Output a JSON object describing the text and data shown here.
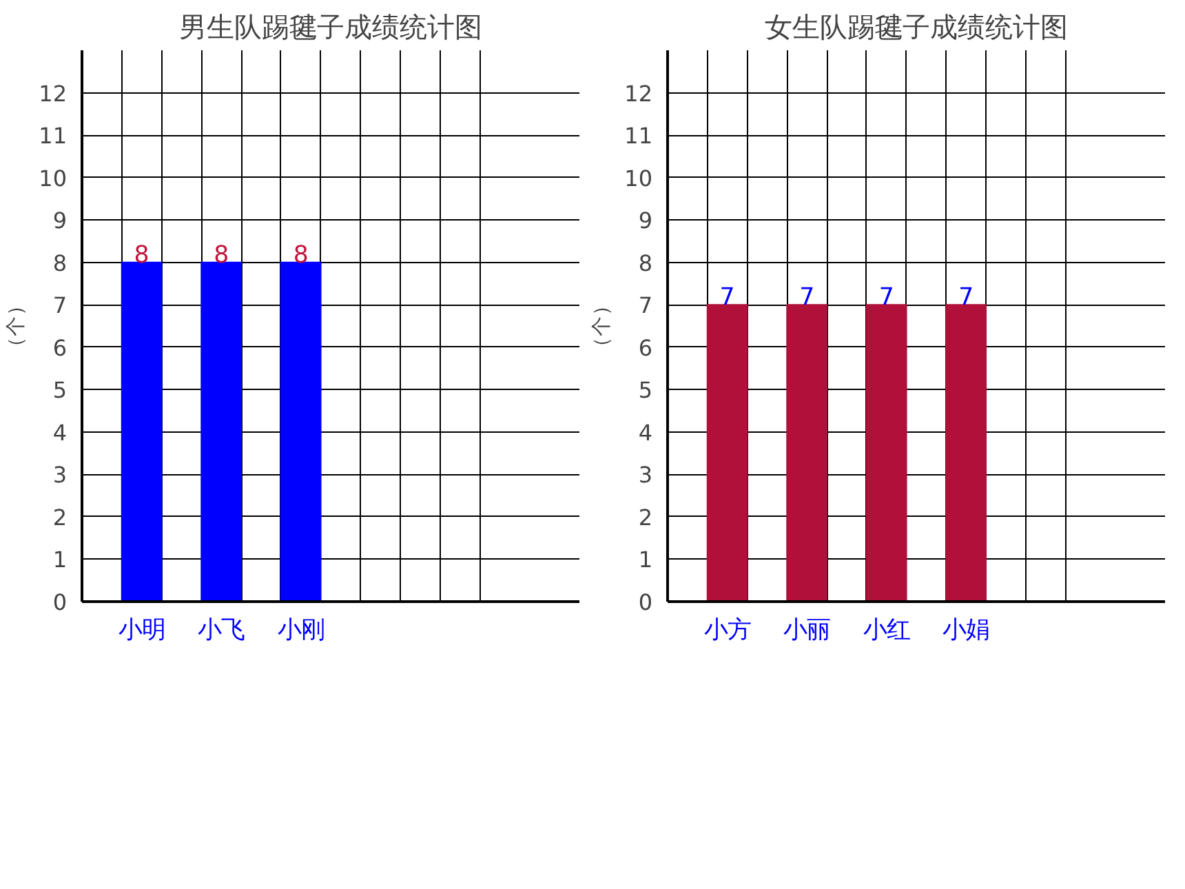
{
  "chart_data": [
    {
      "type": "bar",
      "title": "男生队踢毽子成绩统计图",
      "ylabel": "（个）",
      "categories": [
        null,
        "小明",
        null,
        "小飞",
        null,
        "小刚",
        null,
        null,
        null,
        null
      ],
      "values": [
        null,
        8,
        null,
        8,
        null,
        8,
        null,
        null,
        null,
        null
      ],
      "color": "#0000ff",
      "ylim": [
        0,
        13
      ],
      "yticks": [
        0,
        1,
        2,
        3,
        4,
        5,
        6,
        7,
        8,
        9,
        10,
        11,
        12
      ],
      "grid": true,
      "data_labels": true
    },
    {
      "type": "bar",
      "title": "女生队踢毽子成绩统计图",
      "ylabel": "（个）",
      "categories": [
        null,
        "小方",
        null,
        "小丽",
        null,
        "小红",
        null,
        "小娟",
        null,
        null
      ],
      "values": [
        null,
        7,
        null,
        7,
        null,
        7,
        null,
        7,
        null,
        null
      ],
      "color": "#b0103a",
      "ylim": [
        0,
        13
      ],
      "yticks": [
        0,
        1,
        2,
        3,
        4,
        5,
        6,
        7,
        8,
        9,
        10,
        11,
        12
      ],
      "grid": true,
      "data_labels": true
    }
  ]
}
